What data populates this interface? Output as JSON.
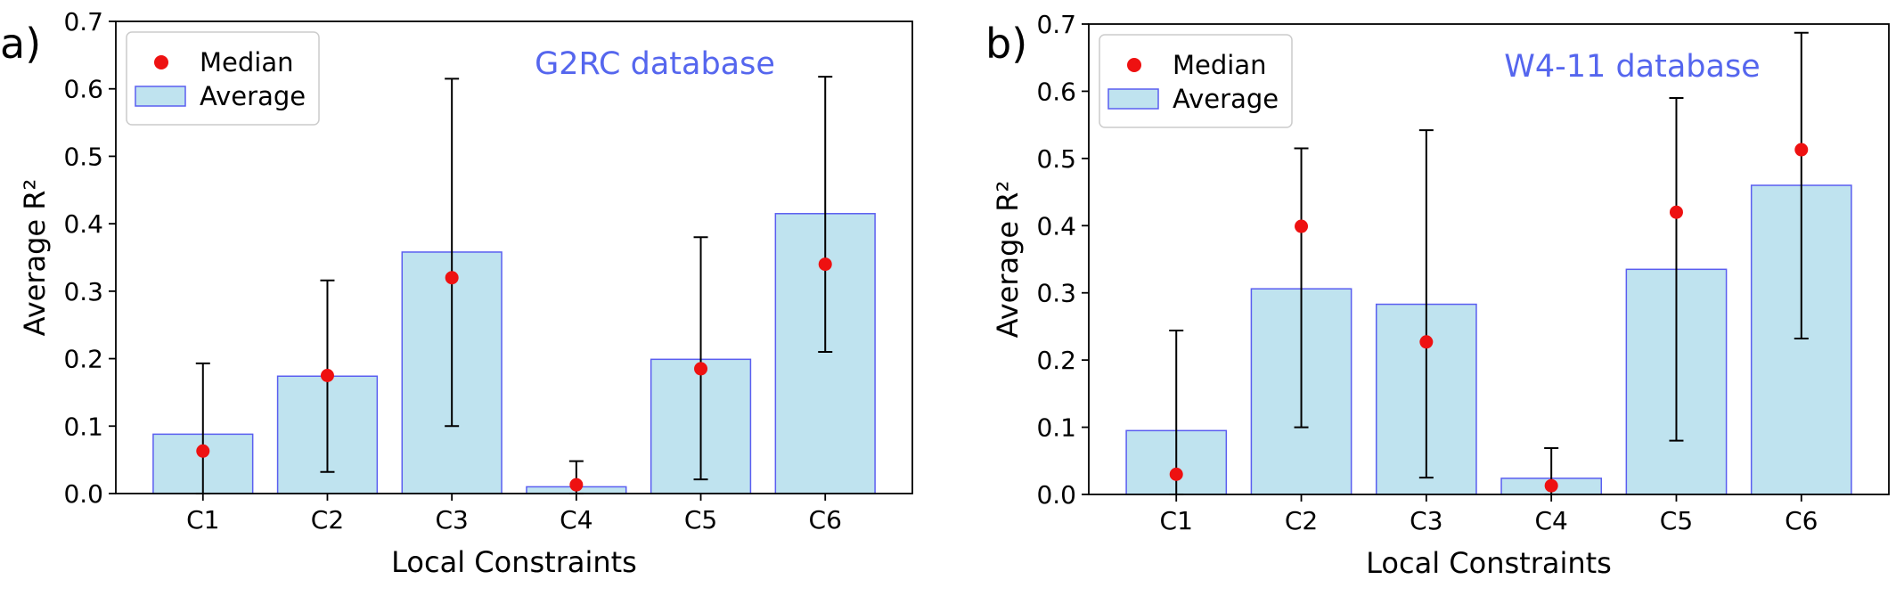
{
  "colors": {
    "bar_fill": "#bfe3ef",
    "bar_edge": "#5a5ef0",
    "median": "#ee1111",
    "errorbar": "#000000",
    "annotation": "#5566ee"
  },
  "chart_data": [
    {
      "panel": "a)",
      "type": "bar",
      "annotation": "G2RC database",
      "xlabel": "Local Constraints",
      "ylabel": "Average R²",
      "ylim": [
        0,
        0.7
      ],
      "yticks": [
        "0.0",
        "0.1",
        "0.2",
        "0.3",
        "0.4",
        "0.5",
        "0.6",
        "0.7"
      ],
      "categories": [
        "C1",
        "C2",
        "C3",
        "C4",
        "C5",
        "C6"
      ],
      "legend": {
        "position": "upper-left",
        "entries": [
          "Median",
          "Average"
        ]
      },
      "series": [
        {
          "name": "Average",
          "values": [
            0.088,
            0.174,
            0.358,
            0.01,
            0.199,
            0.415
          ]
        },
        {
          "name": "Median",
          "values": [
            0.063,
            0.175,
            0.32,
            0.013,
            0.185,
            0.34
          ]
        }
      ],
      "error_bars": [
        [
          0.0,
          0.193
        ],
        [
          0.032,
          0.316
        ],
        [
          0.1,
          0.615
        ],
        [
          0.0,
          0.048
        ],
        [
          0.021,
          0.38
        ],
        [
          0.21,
          0.618
        ]
      ]
    },
    {
      "panel": "b)",
      "type": "bar",
      "annotation": "W4-11 database",
      "xlabel": "Local Constraints",
      "ylabel": "Average R²",
      "ylim": [
        0,
        0.7
      ],
      "yticks": [
        "0.0",
        "0.1",
        "0.2",
        "0.3",
        "0.4",
        "0.5",
        "0.6",
        "0.7"
      ],
      "categories": [
        "C1",
        "C2",
        "C3",
        "C4",
        "C5",
        "C6"
      ],
      "legend": {
        "position": "upper-left",
        "entries": [
          "Median",
          "Average"
        ]
      },
      "series": [
        {
          "name": "Average",
          "values": [
            0.095,
            0.306,
            0.283,
            0.024,
            0.335,
            0.46
          ]
        },
        {
          "name": "Median",
          "values": [
            0.03,
            0.399,
            0.227,
            0.013,
            0.42,
            0.513
          ]
        }
      ],
      "error_bars": [
        [
          0.0,
          0.244
        ],
        [
          0.1,
          0.515
        ],
        [
          0.025,
          0.542
        ],
        [
          0.0,
          0.069
        ],
        [
          0.08,
          0.59
        ],
        [
          0.232,
          0.687
        ]
      ]
    }
  ]
}
